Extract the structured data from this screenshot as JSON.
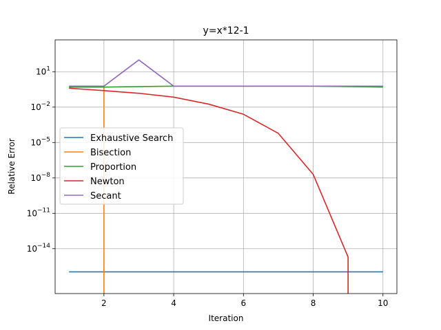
{
  "chart_data": {
    "type": "line",
    "title": "y=x*12-1",
    "xlabel": "Iteration",
    "ylabel": "Relative Error",
    "y_scale": "log",
    "xlim": [
      0.6,
      10.4
    ],
    "ylim_exponent": [
      -17.8,
      3.7
    ],
    "x_ticks": [
      2,
      4,
      6,
      8,
      10
    ],
    "y_ticks": [
      {
        "exp": 1,
        "label_base": "10",
        "label_exp": "1"
      },
      {
        "exp": -2,
        "label_base": "10",
        "label_exp": "−2"
      },
      {
        "exp": -5,
        "label_base": "10",
        "label_exp": "−5"
      },
      {
        "exp": -8,
        "label_base": "10",
        "label_exp": "−8"
      },
      {
        "exp": -11,
        "label_base": "10",
        "label_exp": "−11"
      },
      {
        "exp": -14,
        "label_base": "10",
        "label_exp": "−14"
      }
    ],
    "grid": true,
    "legend_position": "center-left",
    "series": [
      {
        "name": "Exhaustive Search",
        "color": "#1f77b4",
        "x": [
          1,
          2,
          3,
          4,
          5,
          6,
          7,
          8,
          9,
          10
        ],
        "y": [
          1.1e-16,
          1.1e-16,
          1.1e-16,
          1.1e-16,
          1.1e-16,
          1.1e-16,
          1.1e-16,
          1.1e-16,
          1.1e-16,
          1.1e-16
        ]
      },
      {
        "name": "Bisection",
        "color": "#ff7f0e",
        "x": [
          1,
          2,
          2
        ],
        "y": [
          0.5,
          0.5,
          0
        ]
      },
      {
        "name": "Proportion",
        "color": "#2ca02c",
        "x": [
          1,
          2,
          3,
          4,
          5,
          6,
          7,
          8,
          9,
          10
        ],
        "y": [
          0.5,
          0.5,
          0.55,
          0.6,
          0.6,
          0.6,
          0.6,
          0.6,
          0.55,
          0.5
        ]
      },
      {
        "name": "Newton",
        "color": "#d62728",
        "x": [
          1,
          2,
          3,
          4,
          5,
          6,
          7,
          8,
          9,
          9
        ],
        "y": [
          0.4,
          0.25,
          0.15,
          0.07,
          0.018,
          0.0025,
          6e-05,
          2e-08,
          2e-15,
          0
        ]
      },
      {
        "name": "Secant",
        "color": "#9467bd",
        "x": [
          1,
          2,
          3,
          4,
          5,
          6,
          7,
          8,
          9,
          10
        ],
        "y": [
          0.6,
          0.6,
          100,
          0.6,
          0.6,
          0.6,
          0.6,
          0.6,
          0.6,
          0.6
        ]
      }
    ]
  }
}
